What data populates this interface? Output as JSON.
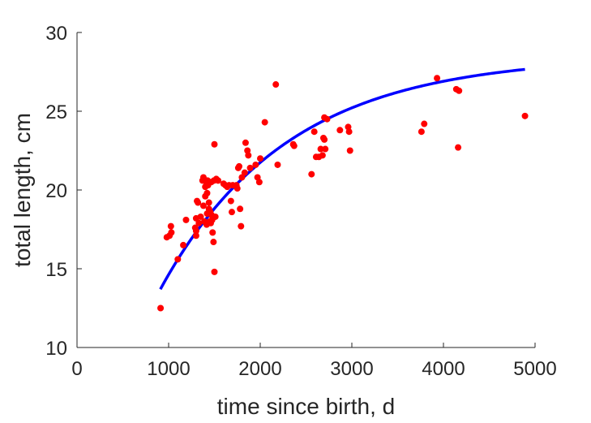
{
  "chart_data": {
    "type": "scatter",
    "xlabel": "time since birth, d",
    "ylabel": "total length, cm",
    "xlim": [
      0,
      5000
    ],
    "ylim": [
      10,
      30
    ],
    "xticks": [
      0,
      1000,
      2000,
      3000,
      4000,
      5000
    ],
    "yticks": [
      10,
      15,
      20,
      25,
      30
    ],
    "xtick_labels": [
      "0",
      "1000",
      "2000",
      "3000",
      "4000",
      "5000"
    ],
    "ytick_labels": [
      "10",
      "15",
      "20",
      "25",
      "30"
    ],
    "grid": false,
    "colors": {
      "points": "#ff0000",
      "curve": "#0000ff",
      "axis": "#262626"
    },
    "series": [
      {
        "type": "scatter",
        "points": [
          [
            912,
            12.5
          ],
          [
            980,
            17.0
          ],
          [
            1010,
            17.1
          ],
          [
            1025,
            17.7
          ],
          [
            1030,
            17.3
          ],
          [
            1100,
            15.6
          ],
          [
            1160,
            16.5
          ],
          [
            1190,
            18.1
          ],
          [
            1290,
            17.6
          ],
          [
            1300,
            17.1
          ],
          [
            1300,
            17.4
          ],
          [
            1300,
            18.2
          ],
          [
            1310,
            19.3
          ],
          [
            1320,
            19.2
          ],
          [
            1330,
            17.9
          ],
          [
            1350,
            18.3
          ],
          [
            1370,
            20.6
          ],
          [
            1380,
            20.8
          ],
          [
            1380,
            19.0
          ],
          [
            1390,
            18.0
          ],
          [
            1400,
            20.2
          ],
          [
            1400,
            19.6
          ],
          [
            1410,
            20.5
          ],
          [
            1415,
            17.8
          ],
          [
            1420,
            18.5
          ],
          [
            1420,
            19.8
          ],
          [
            1425,
            20.6
          ],
          [
            1430,
            20.3
          ],
          [
            1440,
            19.2
          ],
          [
            1440,
            18.8
          ],
          [
            1450,
            18.0
          ],
          [
            1455,
            18.6
          ],
          [
            1460,
            17.9
          ],
          [
            1465,
            20.5
          ],
          [
            1470,
            18.4
          ],
          [
            1475,
            18.1
          ],
          [
            1480,
            17.3
          ],
          [
            1490,
            16.7
          ],
          [
            1495,
            20.6
          ],
          [
            1500,
            22.9
          ],
          [
            1500,
            14.8
          ],
          [
            1510,
            18.3
          ],
          [
            1520,
            20.7
          ],
          [
            1540,
            20.6
          ],
          [
            1600,
            20.4
          ],
          [
            1620,
            20.3
          ],
          [
            1640,
            20.2
          ],
          [
            1660,
            20.3
          ],
          [
            1680,
            19.3
          ],
          [
            1690,
            18.6
          ],
          [
            1700,
            20.3
          ],
          [
            1740,
            20.3
          ],
          [
            1750,
            20.1
          ],
          [
            1760,
            21.4
          ],
          [
            1770,
            21.5
          ],
          [
            1780,
            18.8
          ],
          [
            1790,
            17.7
          ],
          [
            1800,
            20.8
          ],
          [
            1830,
            21.1
          ],
          [
            1840,
            23.0
          ],
          [
            1860,
            22.5
          ],
          [
            1870,
            22.2
          ],
          [
            1890,
            21.4
          ],
          [
            1950,
            21.6
          ],
          [
            1970,
            20.8
          ],
          [
            1990,
            20.5
          ],
          [
            2000,
            22.0
          ],
          [
            2050,
            24.3
          ],
          [
            2170,
            26.7
          ],
          [
            2190,
            21.6
          ],
          [
            2360,
            22.9
          ],
          [
            2370,
            22.8
          ],
          [
            2560,
            21.0
          ],
          [
            2590,
            23.7
          ],
          [
            2610,
            22.1
          ],
          [
            2640,
            22.1
          ],
          [
            2660,
            22.6
          ],
          [
            2680,
            22.2
          ],
          [
            2690,
            23.3
          ],
          [
            2700,
            23.2
          ],
          [
            2700,
            24.6
          ],
          [
            2710,
            22.6
          ],
          [
            2730,
            24.5
          ],
          [
            2870,
            23.8
          ],
          [
            2960,
            24.0
          ],
          [
            2970,
            23.7
          ],
          [
            2980,
            22.5
          ],
          [
            3760,
            23.7
          ],
          [
            3790,
            24.2
          ],
          [
            3930,
            27.1
          ],
          [
            4140,
            26.4
          ],
          [
            4160,
            22.7
          ],
          [
            4170,
            26.3
          ],
          [
            4890,
            24.7
          ]
        ]
      },
      {
        "type": "line",
        "model": {
          "Linf": 28.5,
          "k": 0.00072,
          "x0": 0
        },
        "x_range": [
          910,
          4890
        ]
      }
    ]
  }
}
